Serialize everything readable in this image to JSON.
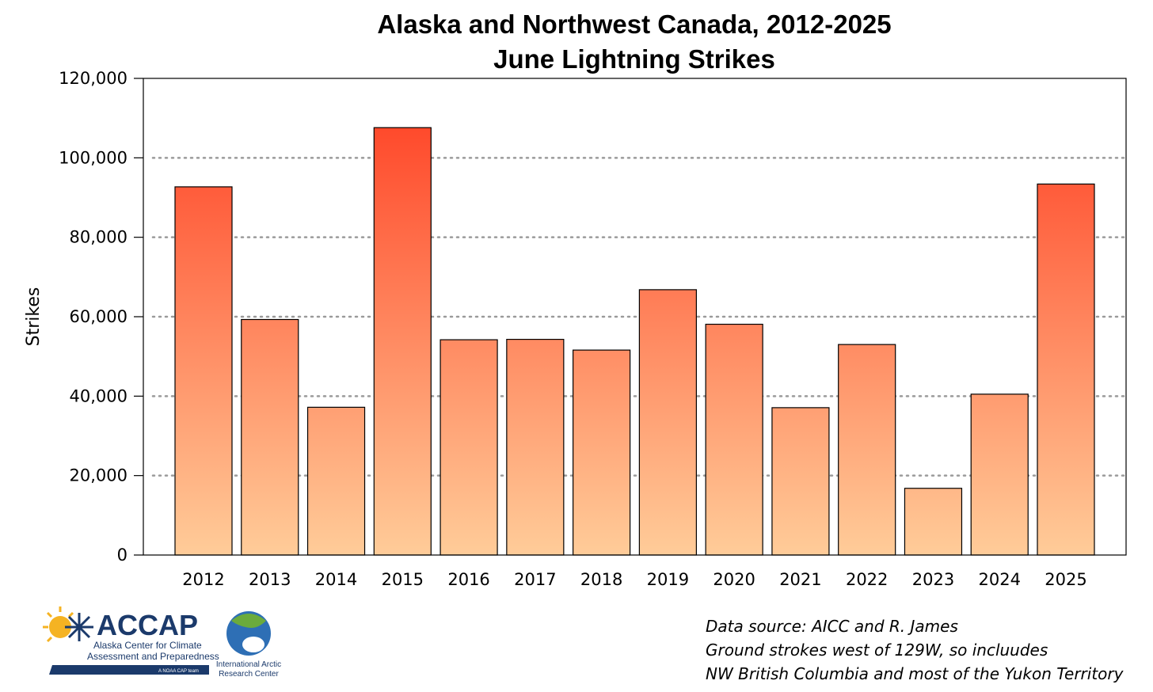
{
  "chart_data": {
    "type": "bar",
    "title": "Alaska and Northwest Canada, 2012-2025",
    "subtitle": "June Lightning Strikes",
    "xlabel": "",
    "ylabel": "Strikes",
    "categories": [
      "2012",
      "2013",
      "2014",
      "2015",
      "2016",
      "2017",
      "2018",
      "2019",
      "2020",
      "2021",
      "2022",
      "2023",
      "2024",
      "2025"
    ],
    "values": [
      92700,
      59300,
      37200,
      107600,
      54200,
      54300,
      51600,
      66800,
      58100,
      37100,
      53000,
      16800,
      40500,
      93400
    ],
    "ylim": [
      0,
      120000
    ],
    "yticks": [
      0,
      20000,
      40000,
      60000,
      80000,
      100000,
      120000
    ],
    "ytick_labels": [
      "0",
      "20,000",
      "40,000",
      "60,000",
      "80,000",
      "100,000",
      "120,000"
    ],
    "grid": "horizontal dotted",
    "bar_gradient": {
      "top": "#ff3b1f",
      "bottom": "#ffcc99"
    }
  },
  "source_note": {
    "lines": [
      "Data source: AICC and R. James",
      "Ground strokes west of 129W, so incluudes",
      "NW British Columbia and most of the Yukon Territory"
    ]
  },
  "logos": {
    "accap_name": "ACCAP",
    "accap_line1": "Alaska Center for Climate",
    "accap_line2": "Assessment and Preparedness",
    "accap_tag": "A NOAA CAP team",
    "iarc_line1": "International Arctic",
    "iarc_line2": "Research Center"
  }
}
